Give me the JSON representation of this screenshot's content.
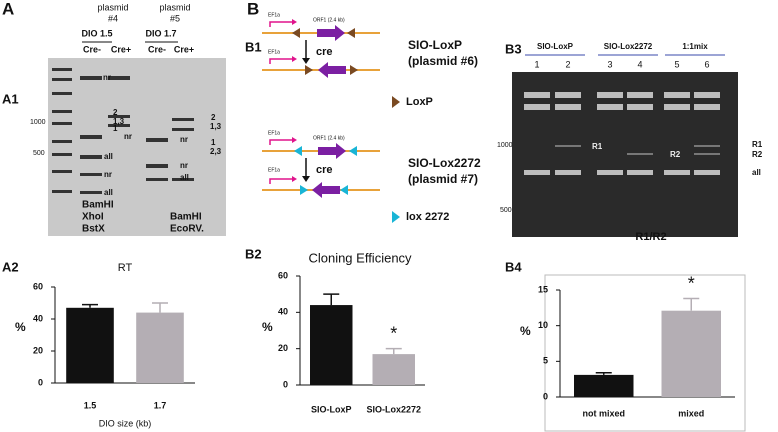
{
  "panels": [
    "A",
    "A1",
    "A2",
    "B",
    "B1",
    "B2",
    "B3",
    "B4"
  ],
  "gel_a": {
    "headers": [
      [
        "plasmid",
        "#4"
      ],
      [
        "plasmid",
        "#5"
      ]
    ],
    "constructs": [
      "DIO 1.5",
      "DIO 1.7"
    ],
    "lanes": [
      "Cre-",
      "Cre+",
      "Cre-",
      "Cre+"
    ],
    "markers": [
      "1000",
      "500"
    ],
    "bands_left": [
      "nr",
      "nr",
      "all",
      "nr",
      "all"
    ],
    "numbers_left": [
      "2",
      "1,3",
      "1"
    ],
    "bands_right": [
      "nr",
      "nr",
      "all"
    ],
    "numbers_right": [
      "2",
      "1,3",
      "1",
      "2,3"
    ],
    "enzymes_left": [
      "BamHI",
      "XhoI",
      "BstX"
    ],
    "enzymes_right": [
      "BamHI",
      "EcoRV."
    ]
  },
  "diagram_b1": {
    "constructs": [
      {
        "promoter": "EF1a",
        "orf": "ORF1 (2.4 kb)",
        "arrow": "cre",
        "name": "SIO-LoxP",
        "plasmid": "(plasmid #6)",
        "site": "LoxP"
      },
      {
        "promoter": "EF1a",
        "orf": "ORF1 (2.4 kb)",
        "arrow": "cre",
        "name": "SIO-Lox2272",
        "plasmid": "(plasmid #7)",
        "site": "lox 2272"
      }
    ]
  },
  "gel_b3": {
    "groups": [
      "SIO-LoxP",
      "SIO-Lox2272",
      "1:1mix"
    ],
    "lanes": [
      "1",
      "2",
      "3",
      "4",
      "5",
      "6"
    ],
    "markers": [
      "1000",
      "500"
    ],
    "inner_labels": [
      "R1",
      "R2"
    ],
    "side_labels": [
      "R1",
      "R2",
      "all"
    ]
  },
  "chart_data": [
    {
      "type": "bar",
      "title": "RT",
      "ylabel": "%",
      "xlabel": "DIO size (kb)",
      "categories": [
        "1.5",
        "1.7"
      ],
      "values": [
        47,
        44
      ],
      "errors": [
        2,
        6
      ],
      "colors": [
        "#111111",
        "#b4aeb4"
      ],
      "ylim": [
        0,
        60
      ],
      "yticks": [
        0,
        20,
        40,
        60
      ]
    },
    {
      "type": "bar",
      "title": "Cloning Efficiency",
      "ylabel": "%",
      "categories": [
        "SIO-LoxP",
        "SIO-Lox2272"
      ],
      "values": [
        44,
        17
      ],
      "errors": [
        6,
        3
      ],
      "colors": [
        "#111111",
        "#b4aeb4"
      ],
      "ylim": [
        0,
        60
      ],
      "yticks": [
        0,
        20,
        40,
        60
      ],
      "annotation": "*"
    },
    {
      "type": "bar",
      "title": "R1/R2",
      "ylabel": "%",
      "categories": [
        "not mixed",
        "mixed"
      ],
      "values": [
        3.1,
        12.1
      ],
      "errors": [
        0.3,
        1.7
      ],
      "colors": [
        "#111111",
        "#b4aeb4"
      ],
      "ylim": [
        0,
        15
      ],
      "yticks": [
        0,
        5,
        10,
        15
      ],
      "annotation": "*"
    }
  ]
}
